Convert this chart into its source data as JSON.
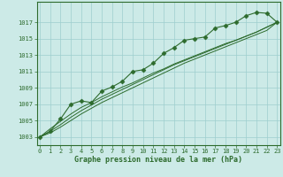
{
  "hours": [
    0,
    1,
    2,
    3,
    4,
    5,
    6,
    7,
    8,
    9,
    10,
    11,
    12,
    13,
    14,
    15,
    16,
    17,
    18,
    19,
    20,
    21,
    22,
    23
  ],
  "pressure_main": [
    1003.0,
    1003.7,
    1005.2,
    1007.0,
    1007.4,
    1007.2,
    1008.6,
    1009.1,
    1009.8,
    1011.0,
    1011.2,
    1012.0,
    1013.2,
    1013.9,
    1014.8,
    1015.0,
    1015.2,
    1016.3,
    1016.6,
    1017.0,
    1017.8,
    1018.2,
    1018.1,
    1017.0
  ],
  "pressure_smooth1": [
    1003.0,
    1003.5,
    1004.2,
    1005.0,
    1005.8,
    1006.5,
    1007.2,
    1007.8,
    1008.4,
    1009.0,
    1009.6,
    1010.2,
    1010.8,
    1011.4,
    1012.0,
    1012.5,
    1013.0,
    1013.5,
    1014.0,
    1014.5,
    1015.0,
    1015.5,
    1016.0,
    1017.0
  ],
  "pressure_smooth2": [
    1003.0,
    1003.7,
    1004.5,
    1005.4,
    1006.2,
    1006.9,
    1007.6,
    1008.2,
    1008.8,
    1009.4,
    1010.0,
    1010.6,
    1011.2,
    1011.8,
    1012.3,
    1012.8,
    1013.3,
    1013.8,
    1014.3,
    1014.8,
    1015.3,
    1015.8,
    1016.4,
    1017.0
  ],
  "pressure_smooth3": [
    1003.0,
    1004.0,
    1004.9,
    1005.8,
    1006.6,
    1007.2,
    1007.9,
    1008.5,
    1009.1,
    1009.6,
    1010.2,
    1010.8,
    1011.3,
    1011.9,
    1012.4,
    1012.9,
    1013.4,
    1013.9,
    1014.4,
    1014.8,
    1015.3,
    1015.8,
    1016.4,
    1017.0
  ],
  "ylim": [
    1002.0,
    1019.5
  ],
  "yticks": [
    1003,
    1005,
    1007,
    1009,
    1011,
    1013,
    1015,
    1017
  ],
  "xticks": [
    0,
    1,
    2,
    3,
    4,
    5,
    6,
    7,
    8,
    9,
    10,
    11,
    12,
    13,
    14,
    15,
    16,
    17,
    18,
    19,
    20,
    21,
    22,
    23
  ],
  "xlabel": "Graphe pression niveau de la mer (hPa)",
  "line_color": "#2d6b2d",
  "bg_color": "#cceae7",
  "grid_color": "#9ecece",
  "spine_color": "#2d6b2d",
  "marker": "D",
  "marker_size": 2.5,
  "tick_fontsize": 5.0,
  "xlabel_fontsize": 6.0
}
